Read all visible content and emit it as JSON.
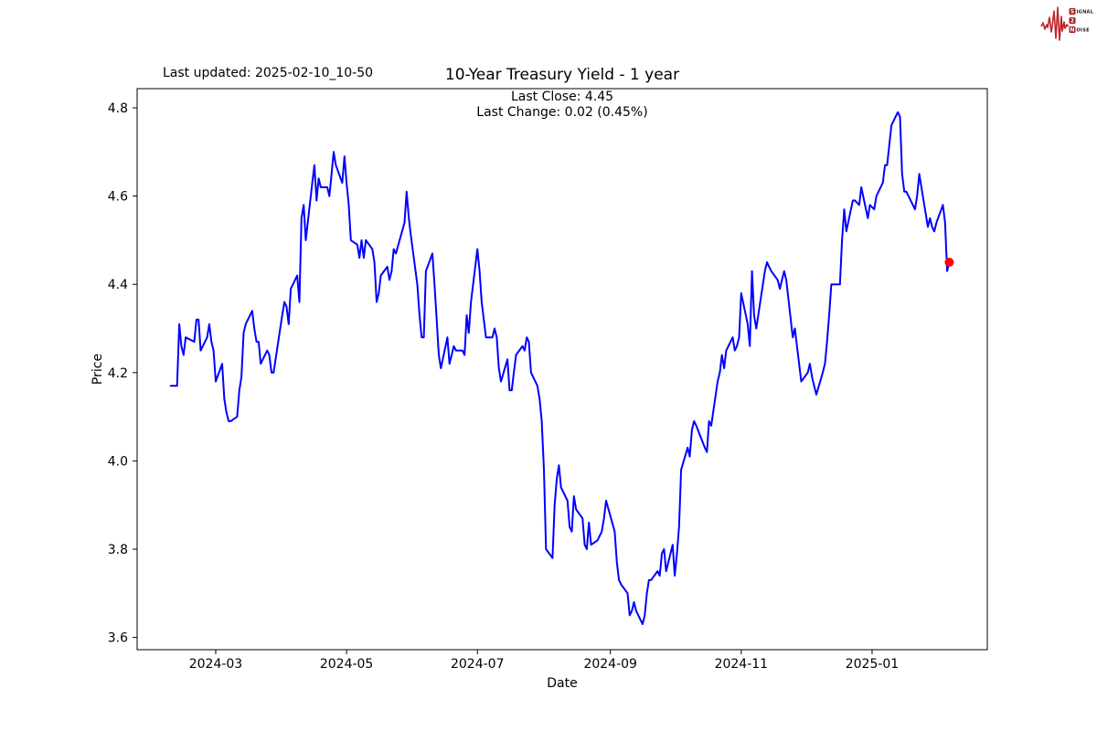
{
  "page": {
    "last_updated": "Last updated: 2025-02-10_10-50"
  },
  "logo": {
    "name": "Signal 2 Noise",
    "line1_initial": "S",
    "line1_rest": "IGNAL",
    "line2_initial": "2",
    "line3_initial": "N",
    "line3_rest": "OISE",
    "box_color": "#a21c1c",
    "wave_color": "#c22326"
  },
  "chart_data": {
    "type": "line",
    "title": "10-Year Treasury Yield - 1 year",
    "subtitle1": "Last Close: 4.45",
    "subtitle2": "Last Change: 0.02 (0.45%)",
    "xlabel": "Date",
    "ylabel": "Price",
    "last_close": 4.45,
    "last_change": 0.02,
    "last_change_pct": "0.45%",
    "line_color": "#0000ff",
    "marker_color": "#ff0000",
    "grid": false,
    "legend": null,
    "ylim": [
      3.57,
      4.84
    ],
    "yticks": [
      4.8,
      4.6,
      4.4,
      4.2,
      4.0,
      3.8,
      3.6
    ],
    "xticks": [
      {
        "label": "2024-03",
        "date": "2024-03-01"
      },
      {
        "label": "2024-05",
        "date": "2024-05-01"
      },
      {
        "label": "2024-07",
        "date": "2024-07-01"
      },
      {
        "label": "2024-09",
        "date": "2024-09-01"
      },
      {
        "label": "2024-11",
        "date": "2024-11-01"
      },
      {
        "label": "2025-01",
        "date": "2025-01-01"
      }
    ],
    "series": [
      {
        "name": "10-Year Treasury Yield",
        "color": "#0000ff",
        "points": [
          [
            "2024-02-09",
            4.17
          ],
          [
            "2024-02-12",
            4.17
          ],
          [
            "2024-02-13",
            4.31
          ],
          [
            "2024-02-14",
            4.26
          ],
          [
            "2024-02-15",
            4.24
          ],
          [
            "2024-02-16",
            4.28
          ],
          [
            "2024-02-20",
            4.27
          ],
          [
            "2024-02-21",
            4.32
          ],
          [
            "2024-02-22",
            4.32
          ],
          [
            "2024-02-23",
            4.25
          ],
          [
            "2024-02-26",
            4.28
          ],
          [
            "2024-02-27",
            4.31
          ],
          [
            "2024-02-28",
            4.27
          ],
          [
            "2024-02-29",
            4.25
          ],
          [
            "2024-03-01",
            4.18
          ],
          [
            "2024-03-04",
            4.22
          ],
          [
            "2024-03-05",
            4.14
          ],
          [
            "2024-03-06",
            4.11
          ],
          [
            "2024-03-07",
            4.09
          ],
          [
            "2024-03-08",
            4.09
          ],
          [
            "2024-03-11",
            4.1
          ],
          [
            "2024-03-12",
            4.16
          ],
          [
            "2024-03-13",
            4.19
          ],
          [
            "2024-03-14",
            4.29
          ],
          [
            "2024-03-15",
            4.31
          ],
          [
            "2024-03-18",
            4.34
          ],
          [
            "2024-03-19",
            4.3
          ],
          [
            "2024-03-20",
            4.27
          ],
          [
            "2024-03-21",
            4.27
          ],
          [
            "2024-03-22",
            4.22
          ],
          [
            "2024-03-25",
            4.25
          ],
          [
            "2024-03-26",
            4.24
          ],
          [
            "2024-03-27",
            4.2
          ],
          [
            "2024-03-28",
            4.2
          ],
          [
            "2024-04-01",
            4.33
          ],
          [
            "2024-04-02",
            4.36
          ],
          [
            "2024-04-03",
            4.35
          ],
          [
            "2024-04-04",
            4.31
          ],
          [
            "2024-04-05",
            4.39
          ],
          [
            "2024-04-08",
            4.42
          ],
          [
            "2024-04-09",
            4.36
          ],
          [
            "2024-04-10",
            4.55
          ],
          [
            "2024-04-11",
            4.58
          ],
          [
            "2024-04-12",
            4.5
          ],
          [
            "2024-04-15",
            4.63
          ],
          [
            "2024-04-16",
            4.67
          ],
          [
            "2024-04-17",
            4.59
          ],
          [
            "2024-04-18",
            4.64
          ],
          [
            "2024-04-19",
            4.62
          ],
          [
            "2024-04-22",
            4.62
          ],
          [
            "2024-04-23",
            4.6
          ],
          [
            "2024-04-24",
            4.65
          ],
          [
            "2024-04-25",
            4.7
          ],
          [
            "2024-04-26",
            4.67
          ],
          [
            "2024-04-29",
            4.63
          ],
          [
            "2024-04-30",
            4.69
          ],
          [
            "2024-05-01",
            4.63
          ],
          [
            "2024-05-02",
            4.58
          ],
          [
            "2024-05-03",
            4.5
          ],
          [
            "2024-05-06",
            4.49
          ],
          [
            "2024-05-07",
            4.46
          ],
          [
            "2024-05-08",
            4.5
          ],
          [
            "2024-05-09",
            4.46
          ],
          [
            "2024-05-10",
            4.5
          ],
          [
            "2024-05-13",
            4.48
          ],
          [
            "2024-05-14",
            4.45
          ],
          [
            "2024-05-15",
            4.36
          ],
          [
            "2024-05-16",
            4.38
          ],
          [
            "2024-05-17",
            4.42
          ],
          [
            "2024-05-20",
            4.44
          ],
          [
            "2024-05-21",
            4.41
          ],
          [
            "2024-05-22",
            4.43
          ],
          [
            "2024-05-23",
            4.48
          ],
          [
            "2024-05-24",
            4.47
          ],
          [
            "2024-05-28",
            4.54
          ],
          [
            "2024-05-29",
            4.61
          ],
          [
            "2024-05-30",
            4.55
          ],
          [
            "2024-05-31",
            4.51
          ],
          [
            "2024-06-03",
            4.4
          ],
          [
            "2024-06-04",
            4.33
          ],
          [
            "2024-06-05",
            4.28
          ],
          [
            "2024-06-06",
            4.28
          ],
          [
            "2024-06-07",
            4.43
          ],
          [
            "2024-06-10",
            4.47
          ],
          [
            "2024-06-11",
            4.4
          ],
          [
            "2024-06-12",
            4.32
          ],
          [
            "2024-06-13",
            4.24
          ],
          [
            "2024-06-14",
            4.21
          ],
          [
            "2024-06-17",
            4.28
          ],
          [
            "2024-06-18",
            4.22
          ],
          [
            "2024-06-20",
            4.26
          ],
          [
            "2024-06-21",
            4.25
          ],
          [
            "2024-06-24",
            4.25
          ],
          [
            "2024-06-25",
            4.24
          ],
          [
            "2024-06-26",
            4.33
          ],
          [
            "2024-06-27",
            4.29
          ],
          [
            "2024-06-28",
            4.36
          ],
          [
            "2024-07-01",
            4.48
          ],
          [
            "2024-07-02",
            4.43
          ],
          [
            "2024-07-03",
            4.36
          ],
          [
            "2024-07-05",
            4.28
          ],
          [
            "2024-07-08",
            4.28
          ],
          [
            "2024-07-09",
            4.3
          ],
          [
            "2024-07-10",
            4.28
          ],
          [
            "2024-07-11",
            4.21
          ],
          [
            "2024-07-12",
            4.18
          ],
          [
            "2024-07-15",
            4.23
          ],
          [
            "2024-07-16",
            4.16
          ],
          [
            "2024-07-17",
            4.16
          ],
          [
            "2024-07-18",
            4.2
          ],
          [
            "2024-07-19",
            4.24
          ],
          [
            "2024-07-22",
            4.26
          ],
          [
            "2024-07-23",
            4.25
          ],
          [
            "2024-07-24",
            4.28
          ],
          [
            "2024-07-25",
            4.27
          ],
          [
            "2024-07-26",
            4.2
          ],
          [
            "2024-07-29",
            4.17
          ],
          [
            "2024-07-30",
            4.14
          ],
          [
            "2024-07-31",
            4.09
          ],
          [
            "2024-08-01",
            3.98
          ],
          [
            "2024-08-02",
            3.8
          ],
          [
            "2024-08-05",
            3.78
          ],
          [
            "2024-08-06",
            3.9
          ],
          [
            "2024-08-07",
            3.96
          ],
          [
            "2024-08-08",
            3.99
          ],
          [
            "2024-08-09",
            3.94
          ],
          [
            "2024-08-12",
            3.91
          ],
          [
            "2024-08-13",
            3.85
          ],
          [
            "2024-08-14",
            3.84
          ],
          [
            "2024-08-15",
            3.92
          ],
          [
            "2024-08-16",
            3.89
          ],
          [
            "2024-08-19",
            3.87
          ],
          [
            "2024-08-20",
            3.81
          ],
          [
            "2024-08-21",
            3.8
          ],
          [
            "2024-08-22",
            3.86
          ],
          [
            "2024-08-23",
            3.81
          ],
          [
            "2024-08-26",
            3.82
          ],
          [
            "2024-08-27",
            3.83
          ],
          [
            "2024-08-28",
            3.84
          ],
          [
            "2024-08-29",
            3.87
          ],
          [
            "2024-08-30",
            3.91
          ],
          [
            "2024-09-03",
            3.84
          ],
          [
            "2024-09-04",
            3.77
          ],
          [
            "2024-09-05",
            3.73
          ],
          [
            "2024-09-06",
            3.72
          ],
          [
            "2024-09-09",
            3.7
          ],
          [
            "2024-09-10",
            3.65
          ],
          [
            "2024-09-11",
            3.66
          ],
          [
            "2024-09-12",
            3.68
          ],
          [
            "2024-09-13",
            3.66
          ],
          [
            "2024-09-16",
            3.63
          ],
          [
            "2024-09-17",
            3.65
          ],
          [
            "2024-09-18",
            3.7
          ],
          [
            "2024-09-19",
            3.73
          ],
          [
            "2024-09-20",
            3.73
          ],
          [
            "2024-09-23",
            3.75
          ],
          [
            "2024-09-24",
            3.74
          ],
          [
            "2024-09-25",
            3.79
          ],
          [
            "2024-09-26",
            3.8
          ],
          [
            "2024-09-27",
            3.75
          ],
          [
            "2024-09-30",
            3.81
          ],
          [
            "2024-10-01",
            3.74
          ],
          [
            "2024-10-02",
            3.79
          ],
          [
            "2024-10-03",
            3.85
          ],
          [
            "2024-10-04",
            3.98
          ],
          [
            "2024-10-07",
            4.03
          ],
          [
            "2024-10-08",
            4.01
          ],
          [
            "2024-10-09",
            4.07
          ],
          [
            "2024-10-10",
            4.09
          ],
          [
            "2024-10-11",
            4.08
          ],
          [
            "2024-10-15",
            4.03
          ],
          [
            "2024-10-16",
            4.02
          ],
          [
            "2024-10-17",
            4.09
          ],
          [
            "2024-10-18",
            4.08
          ],
          [
            "2024-10-21",
            4.18
          ],
          [
            "2024-10-22",
            4.2
          ],
          [
            "2024-10-23",
            4.24
          ],
          [
            "2024-10-24",
            4.21
          ],
          [
            "2024-10-25",
            4.25
          ],
          [
            "2024-10-28",
            4.28
          ],
          [
            "2024-10-29",
            4.25
          ],
          [
            "2024-10-30",
            4.26
          ],
          [
            "2024-10-31",
            4.28
          ],
          [
            "2024-11-01",
            4.38
          ],
          [
            "2024-11-04",
            4.31
          ],
          [
            "2024-11-05",
            4.26
          ],
          [
            "2024-11-06",
            4.43
          ],
          [
            "2024-11-07",
            4.33
          ],
          [
            "2024-11-08",
            4.3
          ],
          [
            "2024-11-12",
            4.43
          ],
          [
            "2024-11-13",
            4.45
          ],
          [
            "2024-11-14",
            4.44
          ],
          [
            "2024-11-15",
            4.43
          ],
          [
            "2024-11-18",
            4.41
          ],
          [
            "2024-11-19",
            4.39
          ],
          [
            "2024-11-20",
            4.41
          ],
          [
            "2024-11-21",
            4.43
          ],
          [
            "2024-11-22",
            4.41
          ],
          [
            "2024-11-25",
            4.28
          ],
          [
            "2024-11-26",
            4.3
          ],
          [
            "2024-11-27",
            4.26
          ],
          [
            "2024-11-29",
            4.18
          ],
          [
            "2024-12-02",
            4.2
          ],
          [
            "2024-12-03",
            4.22
          ],
          [
            "2024-12-04",
            4.19
          ],
          [
            "2024-12-05",
            4.17
          ],
          [
            "2024-12-06",
            4.15
          ],
          [
            "2024-12-09",
            4.2
          ],
          [
            "2024-12-10",
            4.22
          ],
          [
            "2024-12-11",
            4.27
          ],
          [
            "2024-12-12",
            4.33
          ],
          [
            "2024-12-13",
            4.4
          ],
          [
            "2024-12-16",
            4.4
          ],
          [
            "2024-12-17",
            4.4
          ],
          [
            "2024-12-18",
            4.5
          ],
          [
            "2024-12-19",
            4.57
          ],
          [
            "2024-12-20",
            4.52
          ],
          [
            "2024-12-23",
            4.59
          ],
          [
            "2024-12-24",
            4.59
          ],
          [
            "2024-12-26",
            4.58
          ],
          [
            "2024-12-27",
            4.62
          ],
          [
            "2024-12-30",
            4.55
          ],
          [
            "2024-12-31",
            4.58
          ],
          [
            "2025-01-02",
            4.57
          ],
          [
            "2025-01-03",
            4.6
          ],
          [
            "2025-01-06",
            4.63
          ],
          [
            "2025-01-07",
            4.67
          ],
          [
            "2025-01-08",
            4.67
          ],
          [
            "2025-01-10",
            4.76
          ],
          [
            "2025-01-13",
            4.79
          ],
          [
            "2025-01-14",
            4.78
          ],
          [
            "2025-01-15",
            4.65
          ],
          [
            "2025-01-16",
            4.61
          ],
          [
            "2025-01-17",
            4.61
          ],
          [
            "2025-01-21",
            4.57
          ],
          [
            "2025-01-22",
            4.6
          ],
          [
            "2025-01-23",
            4.65
          ],
          [
            "2025-01-24",
            4.62
          ],
          [
            "2025-01-27",
            4.53
          ],
          [
            "2025-01-28",
            4.55
          ],
          [
            "2025-01-29",
            4.53
          ],
          [
            "2025-01-30",
            4.52
          ],
          [
            "2025-01-31",
            4.54
          ],
          [
            "2025-02-03",
            4.58
          ],
          [
            "2025-02-04",
            4.54
          ],
          [
            "2025-02-05",
            4.43
          ],
          [
            "2025-02-06",
            4.45
          ]
        ]
      }
    ]
  }
}
